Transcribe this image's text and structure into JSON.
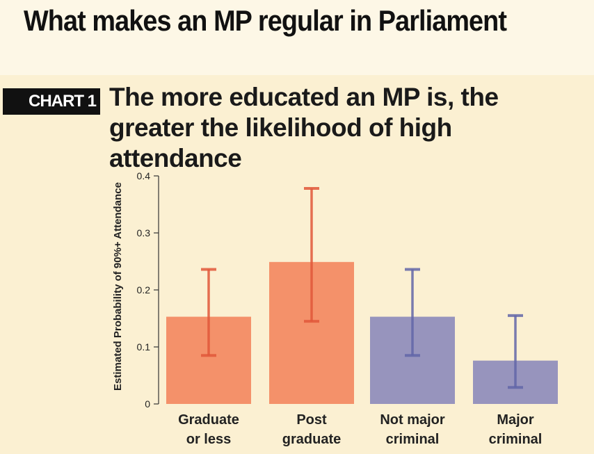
{
  "header": {
    "title": "What makes an MP regular in Parliament"
  },
  "chart_tag": "CHART 1",
  "chart_data": {
    "type": "bar",
    "title": "The more educated an MP is, the greater the likelihood of high attendance",
    "ylabel": "Estimated Probability of 90%+ Attendance",
    "xlabel": "",
    "ylim": [
      0,
      0.4
    ],
    "yticks": [
      "0",
      "0.1",
      "0.2",
      "0.3",
      "0.4"
    ],
    "ytick_values": [
      0,
      0.1,
      0.2,
      0.3,
      0.4
    ],
    "grid": false,
    "legend": "none",
    "categories": [
      {
        "line1": "Graduate",
        "line2": "or less"
      },
      {
        "line1": "Post",
        "line2": "graduate"
      },
      {
        "line1": "Not major",
        "line2": "criminal"
      },
      {
        "line1": "Major",
        "line2": "criminal"
      }
    ],
    "values": [
      0.153,
      0.249,
      0.153,
      0.076
    ],
    "error_low": [
      0.085,
      0.145,
      0.085,
      0.029
    ],
    "error_high": [
      0.236,
      0.378,
      0.236,
      0.155
    ],
    "bar_colors": [
      "#f4916a",
      "#f4916a",
      "#9794bd",
      "#9794bd"
    ],
    "error_colors": [
      "#e0573a",
      "#e0573a",
      "#6266a8",
      "#6266a8"
    ]
  }
}
